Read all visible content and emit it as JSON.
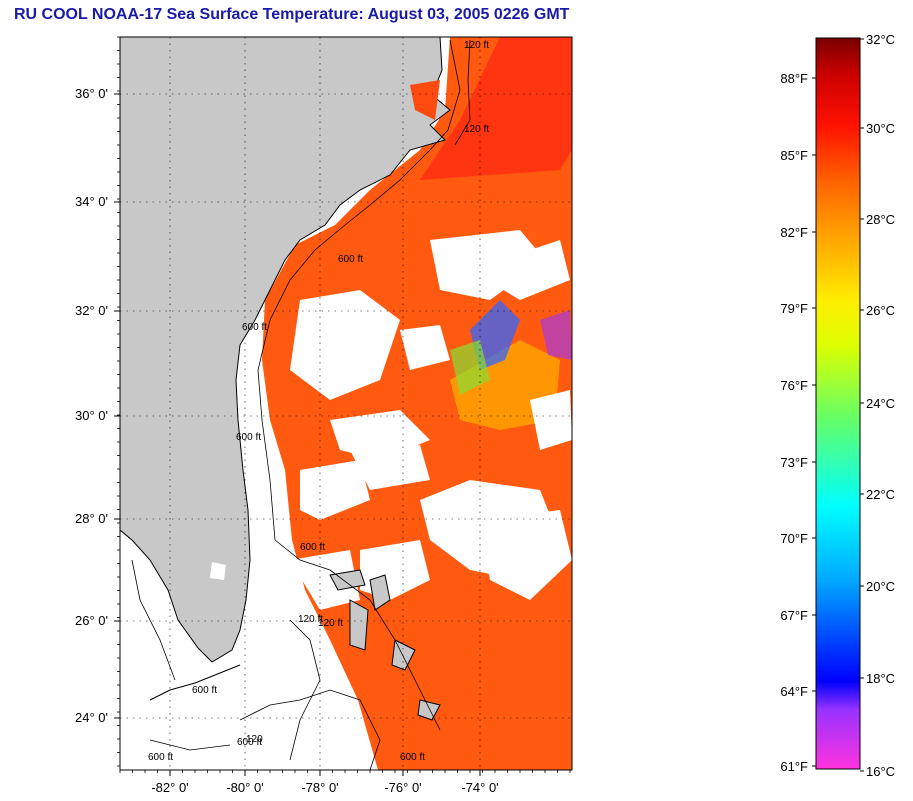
{
  "title": "RU COOL  NOAA-17  Sea Surface Temperature:  August 03, 2005 0226 GMT",
  "map": {
    "lat_labels": [
      "36° 0'",
      "34° 0'",
      "32° 0'",
      "30° 0'",
      "28° 0'",
      "26° 0'",
      "24° 0'"
    ],
    "lon_labels": [
      "-82° 0'",
      "-80° 0'",
      "-78° 0'",
      "-76° 0'",
      "-74° 0'"
    ],
    "contour_labels": [
      "120 ft",
      "120 ft",
      "600 ft",
      "600 ft",
      "600 ft",
      "600 ft",
      "120 ft",
      "120 ft",
      "600 ft",
      "120",
      "600 ft",
      "600 ft",
      "600 ft"
    ],
    "land_color": "#c8c8c8",
    "cloud_color": "#ffffff"
  },
  "colorbar": {
    "f_labels": [
      "88°F",
      "85°F",
      "82°F",
      "79°F",
      "76°F",
      "73°F",
      "70°F",
      "67°F",
      "64°F",
      "61°F"
    ],
    "c_labels": [
      "32°C",
      "30°C",
      "28°C",
      "26°C",
      "24°C",
      "22°C",
      "20°C",
      "18°C",
      "16°C"
    ],
    "stops": [
      "#ff00cc",
      "#9900ff",
      "#0000ff",
      "#00aaff",
      "#00ffff",
      "#00ff80",
      "#ccff00",
      "#ffff00",
      "#ffaa00",
      "#ff6600",
      "#ff0000",
      "#cc0000",
      "#880000"
    ]
  }
}
